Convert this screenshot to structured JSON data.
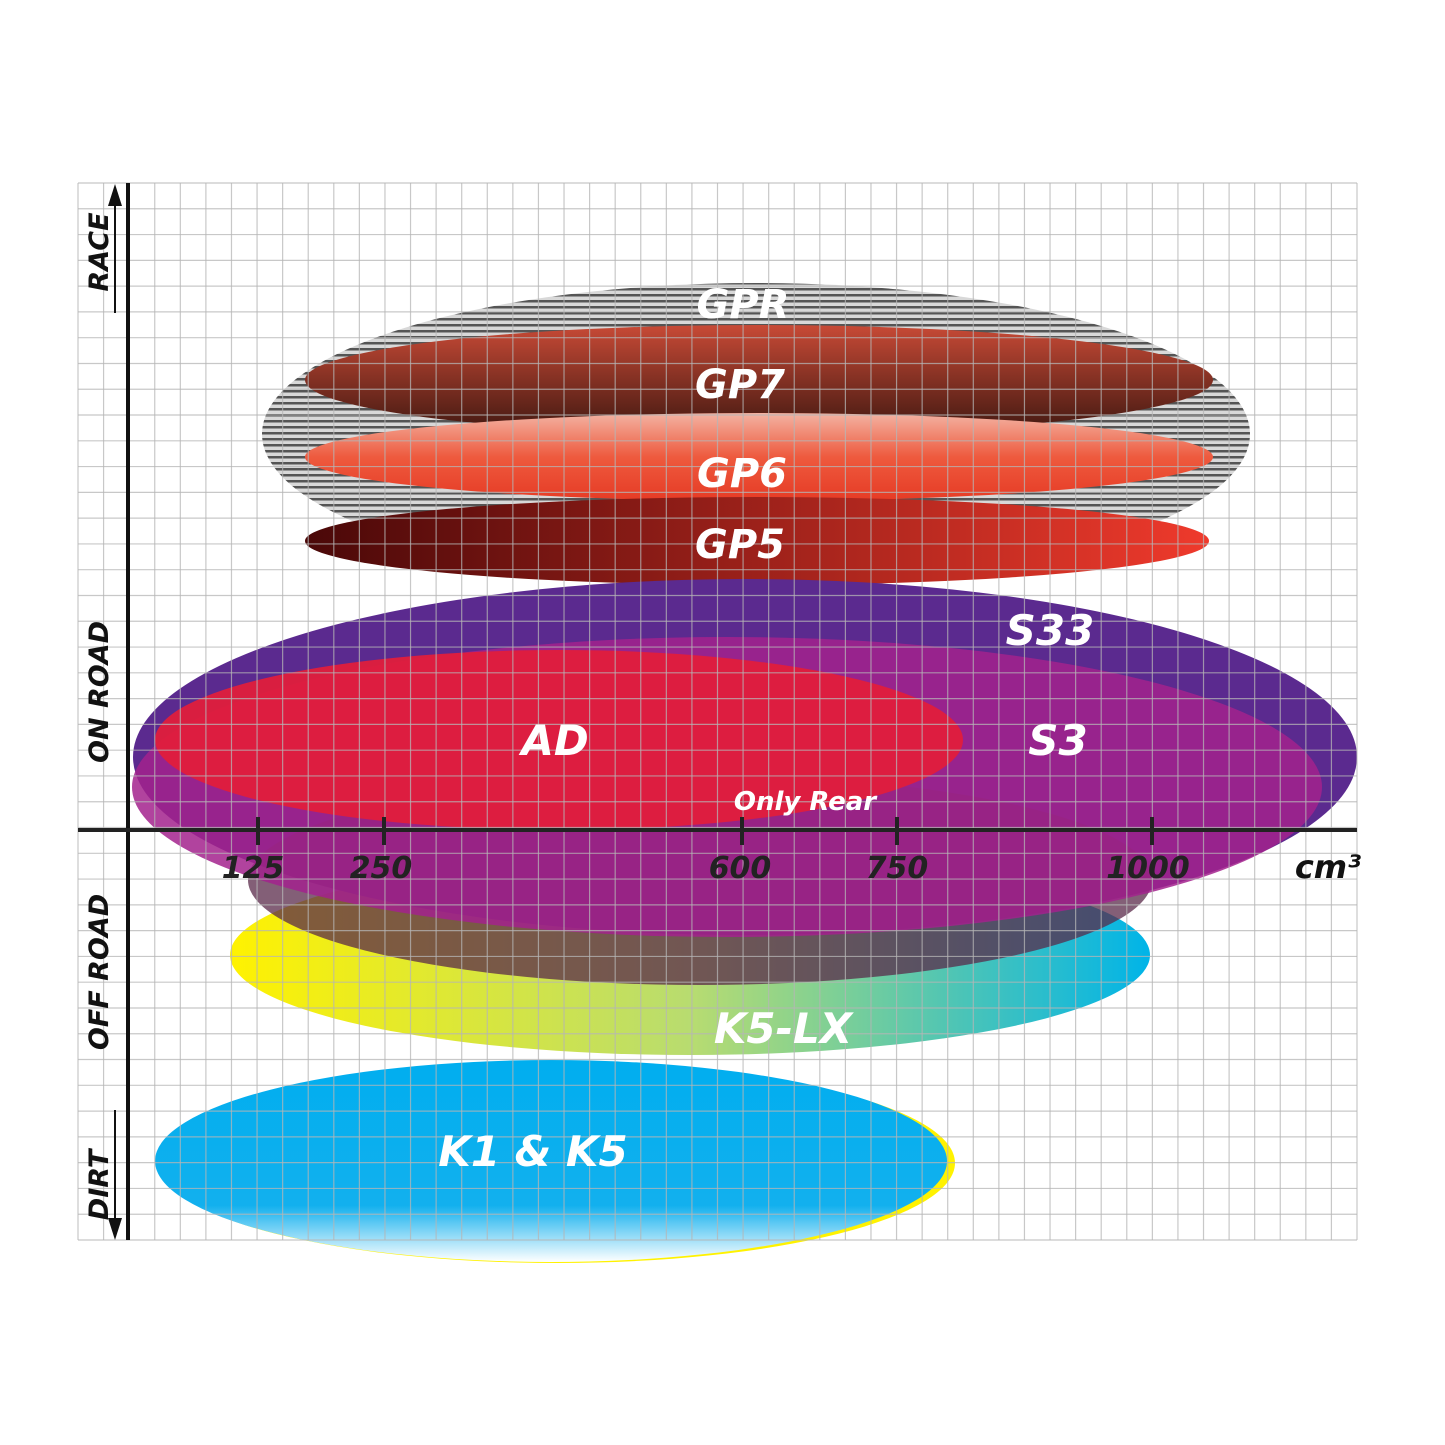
{
  "chart_data": {
    "type": "diagram-ellipse-positioning",
    "xlabel": "cm³",
    "x_ticks": [
      "125",
      "250",
      "600",
      "750",
      "1000"
    ],
    "y_labels": [
      "RACE",
      "ON ROAD",
      "OFF ROAD",
      "DIRT"
    ],
    "grid": true,
    "series": [
      {
        "name": "GPR",
        "x_range": [
          "125",
          "1000+"
        ],
        "zone": "RACE",
        "color": "#9a9a9a"
      },
      {
        "name": "GP7",
        "x_range": [
          "125",
          "1000+"
        ],
        "zone": "RACE",
        "color": "#8a2e20"
      },
      {
        "name": "GP6",
        "x_range": [
          "125",
          "1000+"
        ],
        "zone": "RACE",
        "color": "#e8402a"
      },
      {
        "name": "GP5",
        "x_range": [
          "125",
          "1000+"
        ],
        "zone": "RACE",
        "color": "#b01c14"
      },
      {
        "name": "S33",
        "x_range": [
          "<125",
          ">1000"
        ],
        "zone": "ON ROAD",
        "color": "#5b2a8f"
      },
      {
        "name": "S3",
        "x_range": [
          "<125",
          ">1000"
        ],
        "zone": "ON ROAD",
        "color": "#a3228d"
      },
      {
        "name": "AD",
        "x_range": [
          "<125",
          "750+"
        ],
        "zone": "ON ROAD",
        "color": "#e01e3c"
      },
      {
        "name": "Only Rear",
        "x_range": [
          "125",
          "1000"
        ],
        "zone": "ON ROAD / OFF ROAD",
        "color": "#5a2a4a"
      },
      {
        "name": "K5-LX",
        "x_range": [
          "125",
          "1000"
        ],
        "zone": "OFF ROAD",
        "color": "#22b8d8"
      },
      {
        "name": "K1 & K5",
        "x_range": [
          "<125",
          "750+"
        ],
        "zone": "DIRT",
        "color": "#00aeef"
      }
    ]
  }
}
